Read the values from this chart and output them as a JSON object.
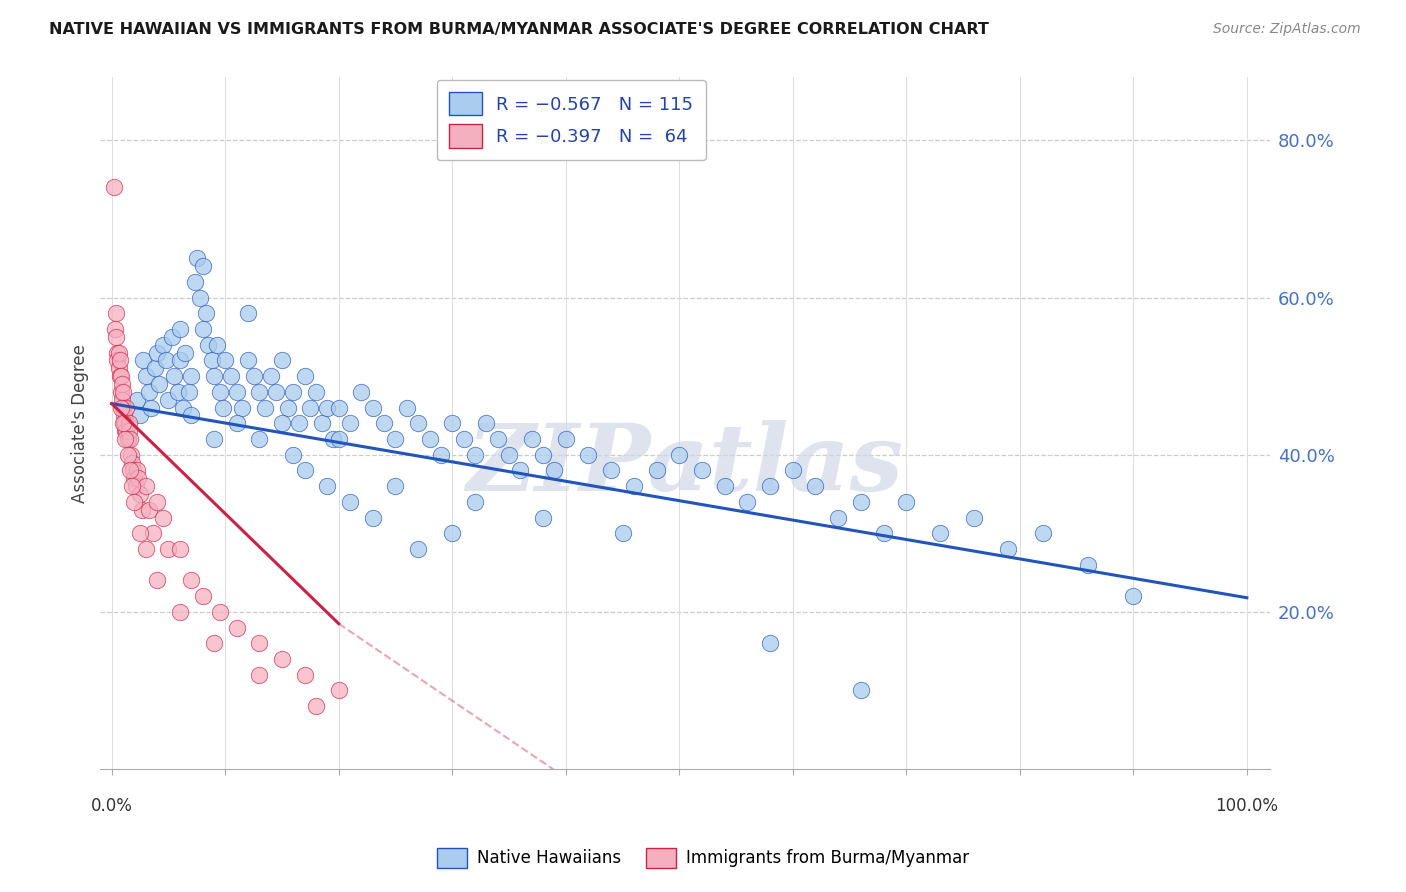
{
  "title": "NATIVE HAWAIIAN VS IMMIGRANTS FROM BURMA/MYANMAR ASSOCIATE'S DEGREE CORRELATION CHART",
  "source": "Source: ZipAtlas.com",
  "ylabel": "Associate's Degree",
  "right_yticks": [
    "20.0%",
    "40.0%",
    "60.0%",
    "80.0%"
  ],
  "right_ytick_vals": [
    0.2,
    0.4,
    0.6,
    0.8
  ],
  "blue_color": "#aaccee",
  "blue_line_color": "#2255bb",
  "pink_color": "#f5b0c0",
  "pink_line_color": "#cc2244",
  "watermark": "ZIPatlas",
  "blue_scatter_x": [
    0.022,
    0.025,
    0.028,
    0.03,
    0.033,
    0.035,
    0.038,
    0.04,
    0.042,
    0.045,
    0.048,
    0.05,
    0.053,
    0.055,
    0.058,
    0.06,
    0.063,
    0.065,
    0.068,
    0.07,
    0.073,
    0.075,
    0.078,
    0.08,
    0.083,
    0.085,
    0.088,
    0.09,
    0.093,
    0.095,
    0.098,
    0.1,
    0.105,
    0.11,
    0.115,
    0.12,
    0.125,
    0.13,
    0.135,
    0.14,
    0.145,
    0.15,
    0.155,
    0.16,
    0.165,
    0.17,
    0.175,
    0.18,
    0.185,
    0.19,
    0.195,
    0.2,
    0.21,
    0.22,
    0.23,
    0.24,
    0.25,
    0.26,
    0.27,
    0.28,
    0.29,
    0.3,
    0.31,
    0.32,
    0.33,
    0.34,
    0.35,
    0.36,
    0.37,
    0.38,
    0.39,
    0.4,
    0.42,
    0.44,
    0.46,
    0.48,
    0.5,
    0.52,
    0.54,
    0.56,
    0.58,
    0.6,
    0.62,
    0.64,
    0.66,
    0.68,
    0.7,
    0.73,
    0.76,
    0.79,
    0.82,
    0.86,
    0.9,
    0.06,
    0.08,
    0.12,
    0.15,
    0.2,
    0.25,
    0.3,
    0.07,
    0.09,
    0.11,
    0.13,
    0.16,
    0.17,
    0.19,
    0.21,
    0.23,
    0.27,
    0.32,
    0.38,
    0.45,
    0.58,
    0.66
  ],
  "blue_scatter_y": [
    0.47,
    0.45,
    0.52,
    0.5,
    0.48,
    0.46,
    0.51,
    0.53,
    0.49,
    0.54,
    0.52,
    0.47,
    0.55,
    0.5,
    0.48,
    0.52,
    0.46,
    0.53,
    0.48,
    0.5,
    0.62,
    0.65,
    0.6,
    0.56,
    0.58,
    0.54,
    0.52,
    0.5,
    0.54,
    0.48,
    0.46,
    0.52,
    0.5,
    0.48,
    0.46,
    0.52,
    0.5,
    0.48,
    0.46,
    0.5,
    0.48,
    0.52,
    0.46,
    0.48,
    0.44,
    0.5,
    0.46,
    0.48,
    0.44,
    0.46,
    0.42,
    0.46,
    0.44,
    0.48,
    0.46,
    0.44,
    0.42,
    0.46,
    0.44,
    0.42,
    0.4,
    0.44,
    0.42,
    0.4,
    0.44,
    0.42,
    0.4,
    0.38,
    0.42,
    0.4,
    0.38,
    0.42,
    0.4,
    0.38,
    0.36,
    0.38,
    0.4,
    0.38,
    0.36,
    0.34,
    0.36,
    0.38,
    0.36,
    0.32,
    0.34,
    0.3,
    0.34,
    0.3,
    0.32,
    0.28,
    0.3,
    0.26,
    0.22,
    0.56,
    0.64,
    0.58,
    0.44,
    0.42,
    0.36,
    0.3,
    0.45,
    0.42,
    0.44,
    0.42,
    0.4,
    0.38,
    0.36,
    0.34,
    0.32,
    0.28,
    0.34,
    0.32,
    0.3,
    0.16,
    0.1
  ],
  "pink_scatter_x": [
    0.002,
    0.003,
    0.004,
    0.004,
    0.005,
    0.005,
    0.006,
    0.006,
    0.007,
    0.007,
    0.008,
    0.008,
    0.009,
    0.009,
    0.01,
    0.01,
    0.011,
    0.011,
    0.012,
    0.012,
    0.013,
    0.013,
    0.014,
    0.015,
    0.015,
    0.016,
    0.017,
    0.018,
    0.019,
    0.02,
    0.021,
    0.022,
    0.023,
    0.025,
    0.027,
    0.03,
    0.033,
    0.036,
    0.04,
    0.045,
    0.05,
    0.06,
    0.07,
    0.08,
    0.095,
    0.11,
    0.13,
    0.15,
    0.17,
    0.2,
    0.008,
    0.01,
    0.012,
    0.014,
    0.016,
    0.018,
    0.02,
    0.025,
    0.03,
    0.04,
    0.06,
    0.09,
    0.13,
    0.18
  ],
  "pink_scatter_y": [
    0.74,
    0.56,
    0.58,
    0.55,
    0.53,
    0.52,
    0.51,
    0.53,
    0.5,
    0.52,
    0.48,
    0.5,
    0.47,
    0.49,
    0.48,
    0.46,
    0.45,
    0.44,
    0.43,
    0.44,
    0.46,
    0.43,
    0.42,
    0.44,
    0.43,
    0.42,
    0.4,
    0.39,
    0.38,
    0.37,
    0.36,
    0.38,
    0.37,
    0.35,
    0.33,
    0.36,
    0.33,
    0.3,
    0.34,
    0.32,
    0.28,
    0.28,
    0.24,
    0.22,
    0.2,
    0.18,
    0.16,
    0.14,
    0.12,
    0.1,
    0.46,
    0.44,
    0.42,
    0.4,
    0.38,
    0.36,
    0.34,
    0.3,
    0.28,
    0.24,
    0.2,
    0.16,
    0.12,
    0.08
  ]
}
